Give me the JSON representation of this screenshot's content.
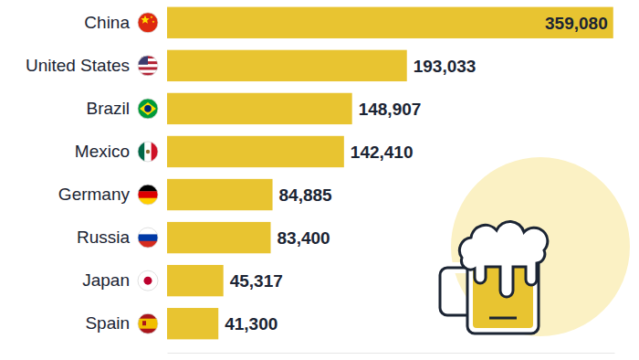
{
  "chart_data": {
    "type": "bar",
    "orientation": "horizontal",
    "categories": [
      "China",
      "United States",
      "Brazil",
      "Mexico",
      "Germany",
      "Russia",
      "Japan",
      "Spain"
    ],
    "values": [
      359080,
      193033,
      148907,
      142410,
      84885,
      83400,
      45317,
      41300
    ],
    "value_labels": [
      "359,080",
      "193,033",
      "148,907",
      "142,410",
      "84,885",
      "83,400",
      "45,317",
      "41,300"
    ],
    "color": "#e8c431",
    "xlim": [
      0,
      360000
    ],
    "data_labels": true,
    "tick_labels": "y",
    "grid": false
  }
}
